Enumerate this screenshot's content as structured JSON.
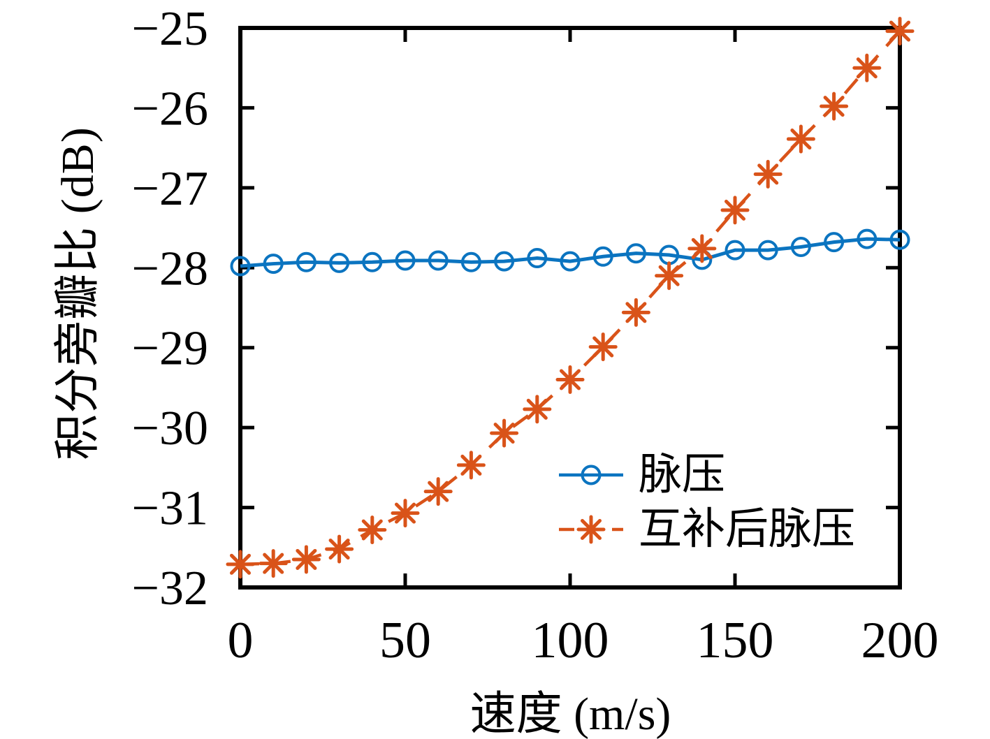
{
  "chart_data": {
    "type": "line",
    "title": "",
    "xlabel": "速度 (m/s)",
    "ylabel": "积分旁瓣比 (dB)",
    "xlim": [
      0,
      200
    ],
    "ylim": [
      -32,
      -25
    ],
    "xticks": [
      0,
      50,
      100,
      150,
      200
    ],
    "xtick_labels": [
      "0",
      "50",
      "100",
      "150",
      "200"
    ],
    "yticks": [
      -25,
      -26,
      -27,
      -28,
      -29,
      -30,
      -31,
      -32
    ],
    "ytick_labels": [
      "−25",
      "−26",
      "−27",
      "−28",
      "−29",
      "−30",
      "−31",
      "−32"
    ],
    "grid": false,
    "box": true,
    "legend_position": "inside-lower-right",
    "axis_color": "#000000",
    "x": [
      0,
      10,
      20,
      30,
      40,
      50,
      60,
      70,
      80,
      90,
      100,
      110,
      120,
      130,
      140,
      150,
      160,
      170,
      180,
      190,
      200
    ],
    "series": [
      {
        "name": "脉压",
        "color": "#0b74c0",
        "line_style": "solid",
        "marker": "circle",
        "values": [
          -27.98,
          -27.95,
          -27.93,
          -27.94,
          -27.93,
          -27.91,
          -27.91,
          -27.93,
          -27.92,
          -27.88,
          -27.92,
          -27.86,
          -27.82,
          -27.84,
          -27.9,
          -27.78,
          -27.78,
          -27.74,
          -27.68,
          -27.64,
          -27.65
        ]
      },
      {
        "name": "互补后脉压",
        "color": "#d95319",
        "line_style": "dashed",
        "marker": "asterisk",
        "values": [
          -31.71,
          -31.7,
          -31.65,
          -31.52,
          -31.28,
          -31.07,
          -30.8,
          -30.47,
          -30.07,
          -29.77,
          -29.4,
          -28.99,
          -28.56,
          -28.1,
          -27.76,
          -27.28,
          -26.83,
          -26.39,
          -25.98,
          -25.5,
          -25.04
        ]
      }
    ]
  }
}
